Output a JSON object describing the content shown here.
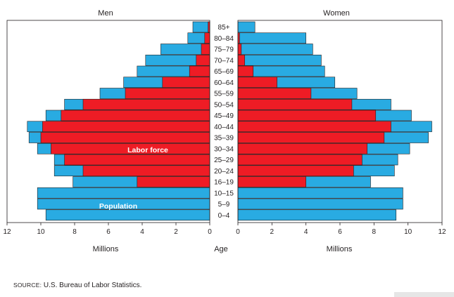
{
  "chart_data": {
    "type": "bar",
    "subtype": "population-pyramid",
    "panel_titles": {
      "left": "Men",
      "right": "Women"
    },
    "xlabel_left": "Millions",
    "xlabel_right": "Millions",
    "center_axis_label": "Age",
    "xlim": [
      0,
      12
    ],
    "x_ticks": [
      0,
      2,
      4,
      6,
      8,
      10,
      12
    ],
    "categories": [
      "85+",
      "80–84",
      "75–79",
      "70–74",
      "65–69",
      "60–64",
      "55–59",
      "50–54",
      "45–49",
      "40–44",
      "35–39",
      "30–34",
      "25–29",
      "20–24",
      "16–19",
      "10–15",
      "5–9",
      "0–4"
    ],
    "series": [
      {
        "name": "Population",
        "color": "#29abe2",
        "men": [
          1.0,
          1.3,
          2.9,
          3.8,
          4.3,
          5.1,
          6.5,
          8.6,
          9.7,
          10.8,
          10.7,
          10.2,
          9.2,
          9.2,
          8.1,
          10.2,
          10.2,
          9.7
        ],
        "women": [
          1.0,
          4.0,
          4.4,
          4.9,
          5.1,
          5.7,
          7.0,
          9.0,
          10.2,
          11.4,
          11.2,
          10.1,
          9.4,
          9.2,
          7.8,
          9.7,
          9.7,
          9.3
        ]
      },
      {
        "name": "Labor force",
        "color": "#ee1c25",
        "men": [
          0.1,
          0.3,
          0.5,
          0.8,
          1.2,
          2.8,
          5.0,
          7.5,
          8.8,
          9.9,
          10.0,
          9.4,
          8.6,
          7.5,
          4.3,
          0,
          0,
          0
        ],
        "women": [
          0.0,
          0.1,
          0.2,
          0.4,
          0.9,
          2.3,
          4.3,
          6.7,
          8.1,
          9.0,
          8.6,
          7.6,
          7.3,
          6.8,
          4.0,
          0,
          0,
          0
        ]
      }
    ],
    "annotations": [
      {
        "text": "Labor force",
        "row": "30–34",
        "side": "left"
      },
      {
        "text": "Population",
        "row": "5–9",
        "side": "left"
      }
    ],
    "grid": false
  },
  "source": {
    "label": "SOURCE:",
    "text": "U.S. Bureau of Labor Statistics."
  }
}
